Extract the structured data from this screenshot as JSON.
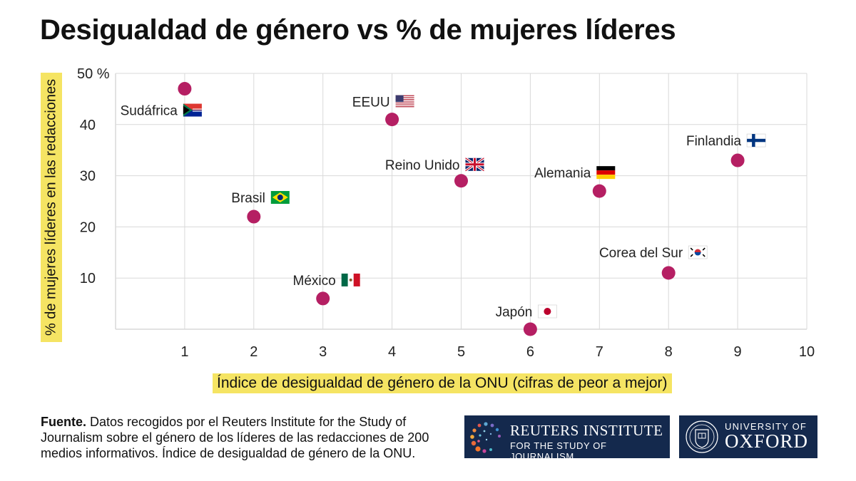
{
  "title": "Desigualdad de género vs % de mujeres líderes",
  "source": {
    "label": "Fuente.",
    "text": "Datos recogidos por el Reuters Institute for the Study of Journalism sobre el género de los líderes de las redacciones de 200 medios informativos. Índice de desigualdad de género de la ONU."
  },
  "logos": {
    "reuters": {
      "name": "REUTERS INSTITUTE",
      "subtitle": "FOR THE STUDY OF JOURNALISM"
    },
    "oxford": {
      "university": "UNIVERSITY OF",
      "name": "OXFORD"
    }
  },
  "colors": {
    "point": "#b51f63",
    "highlight": "#f5e463",
    "grid": "#d9d9d9",
    "logo_bg": "#14294d"
  },
  "chart_data": {
    "type": "scatter",
    "title": "Desigualdad de género vs % de mujeres líderes",
    "xlabel": "Índice de desigualdad de género de la ONU (cifras de peor a mejor)",
    "ylabel": "% de mujeres líderes en las redacciones",
    "xlim": [
      0,
      10
    ],
    "ylim": [
      0,
      50
    ],
    "x_ticks": [
      1,
      2,
      3,
      4,
      5,
      6,
      7,
      8,
      9,
      10
    ],
    "y_ticks": [
      10,
      20,
      30,
      40,
      50
    ],
    "y_top_tick_label": "50 %",
    "grid": true,
    "points": [
      {
        "label": "Sudáfrica",
        "flag": "south-africa-flag",
        "x": 1,
        "y": 47
      },
      {
        "label": "Brasil",
        "flag": "brazil-flag",
        "x": 2,
        "y": 22
      },
      {
        "label": "México",
        "flag": "mexico-flag",
        "x": 3,
        "y": 6
      },
      {
        "label": "EEUU",
        "flag": "usa-flag",
        "x": 4,
        "y": 41
      },
      {
        "label": "Reino Unido",
        "flag": "uk-flag",
        "x": 5,
        "y": 29
      },
      {
        "label": "Japón",
        "flag": "japan-flag",
        "x": 6,
        "y": 0
      },
      {
        "label": "Alemania",
        "flag": "germany-flag",
        "x": 7,
        "y": 27
      },
      {
        "label": "Corea del Sur",
        "flag": "south-korea-flag",
        "x": 8,
        "y": 11
      },
      {
        "label": "Finlandia",
        "flag": "finland-flag",
        "x": 9,
        "y": 33
      }
    ]
  }
}
